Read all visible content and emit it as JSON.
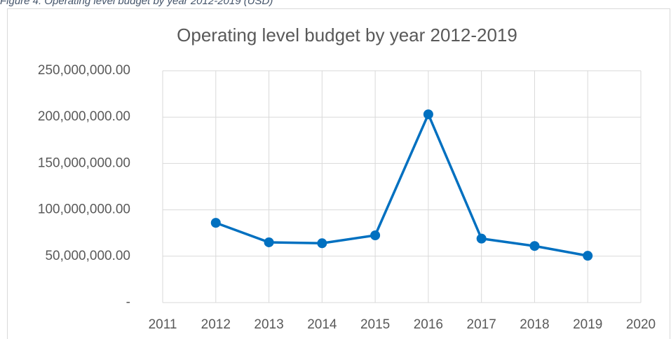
{
  "caption": "Figure 4: Operating level budget by year 2012-2019 (USD)",
  "chart_data": {
    "type": "line",
    "title": "Operating level budget by year 2012-2019",
    "x": [
      2012,
      2013,
      2014,
      2015,
      2016,
      2017,
      2018,
      2019
    ],
    "values": [
      86000000,
      65000000,
      64000000,
      72500000,
      203000000,
      69000000,
      61000000,
      50500000
    ],
    "color": "#0070c0",
    "xlim": [
      2011,
      2020
    ],
    "xticks": [
      2011,
      2012,
      2013,
      2014,
      2015,
      2016,
      2017,
      2018,
      2019,
      2020
    ],
    "ylim": [
      0,
      250000000
    ],
    "yticks": [
      {
        "value": 0,
        "label": "-"
      },
      {
        "value": 50000000,
        "label": "50,000,000.00"
      },
      {
        "value": 100000000,
        "label": "100,000,000.00"
      },
      {
        "value": 150000000,
        "label": "150,000,000.00"
      },
      {
        "value": 200000000,
        "label": "200,000,000.00"
      },
      {
        "value": 250000000,
        "label": "250,000,000.00"
      }
    ],
    "grid": true
  }
}
